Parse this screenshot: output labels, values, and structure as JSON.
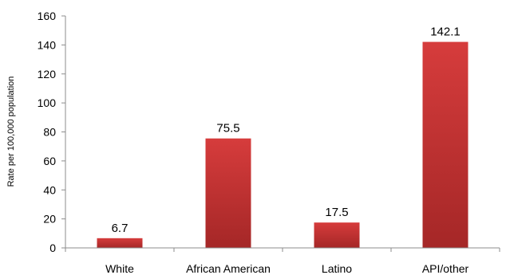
{
  "chart_data": {
    "type": "bar",
    "categories": [
      "White",
      "African American",
      "Latino",
      "API/other"
    ],
    "values": [
      6.7,
      75.5,
      17.5,
      142.1
    ],
    "value_labels": [
      "6.7",
      "75.5",
      "17.5",
      "142.1"
    ],
    "ylabel": "Rate per 100,000 population",
    "xlabel": "",
    "ylim": [
      0,
      160
    ],
    "yticks": [
      "0",
      "20",
      "40",
      "60",
      "80",
      "100",
      "120",
      "140",
      "160"
    ],
    "grid": false,
    "legend": "none",
    "bar_color": "#c53232"
  }
}
